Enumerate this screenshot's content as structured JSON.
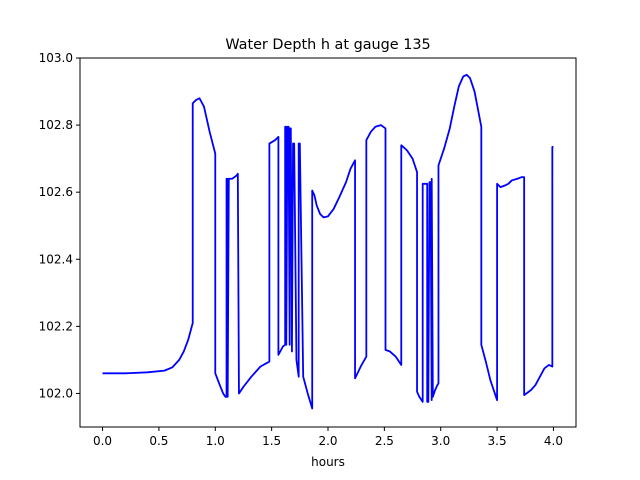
{
  "chart_data": {
    "type": "line",
    "title": "Water Depth h at gauge 135",
    "xlabel": "hours",
    "ylabel": "",
    "xlim": [
      -0.2,
      4.2
    ],
    "ylim": [
      101.9,
      103.0
    ],
    "xticks": [
      0.0,
      0.5,
      1.0,
      1.5,
      2.0,
      2.5,
      3.0,
      3.5,
      4.0
    ],
    "xtick_labels": [
      "0.0",
      "0.5",
      "1.0",
      "1.5",
      "2.0",
      "2.5",
      "3.0",
      "3.5",
      "4.0"
    ],
    "yticks": [
      102.0,
      102.2,
      102.4,
      102.6,
      102.8,
      103.0
    ],
    "ytick_labels": [
      "102.0",
      "102.2",
      "102.4",
      "102.6",
      "102.8",
      "103.0"
    ],
    "grid": false,
    "series": [
      {
        "color": "#0000ff",
        "x": [
          0.0,
          0.2,
          0.4,
          0.55,
          0.62,
          0.68,
          0.72,
          0.76,
          0.8,
          0.8,
          0.83,
          0.86,
          0.9,
          0.95,
          1.0,
          1.0,
          1.04,
          1.07,
          1.09,
          1.1,
          1.1,
          1.11,
          1.11,
          1.12,
          1.15,
          1.19,
          1.2,
          1.21,
          1.25,
          1.32,
          1.4,
          1.48,
          1.48,
          1.53,
          1.56,
          1.56,
          1.6,
          1.62,
          1.62,
          1.63,
          1.63,
          1.64,
          1.65,
          1.66,
          1.66,
          1.67,
          1.68,
          1.68,
          1.69,
          1.7,
          1.72,
          1.74,
          1.74,
          1.75,
          1.78,
          1.82,
          1.86,
          1.86,
          1.88,
          1.9,
          1.93,
          1.96,
          2.0,
          2.05,
          2.1,
          2.16,
          2.2,
          2.24,
          2.24,
          2.29,
          2.34,
          2.34,
          2.38,
          2.42,
          2.47,
          2.51,
          2.51,
          2.55,
          2.6,
          2.65,
          2.65,
          2.7,
          2.75,
          2.79,
          2.79,
          2.81,
          2.84,
          2.84,
          2.86,
          2.88,
          2.88,
          2.89,
          2.9,
          2.91,
          2.92,
          2.92,
          2.93,
          2.94,
          2.95,
          2.97,
          2.98,
          2.98,
          3.03,
          3.08,
          3.12,
          3.16,
          3.2,
          3.23,
          3.26,
          3.3,
          3.36,
          3.36,
          3.4,
          3.44,
          3.48,
          3.5,
          3.5,
          3.53,
          3.57,
          3.6,
          3.63,
          3.68,
          3.72,
          3.74,
          3.74,
          3.8,
          3.84,
          3.88,
          3.92,
          3.96,
          3.99,
          3.99,
          4.0
        ],
        "y": [
          102.06,
          102.06,
          102.063,
          102.068,
          102.078,
          102.1,
          102.125,
          102.16,
          102.21,
          102.865,
          102.875,
          102.88,
          102.855,
          102.78,
          102.715,
          102.06,
          102.025,
          102.0,
          101.99,
          101.99,
          102.64,
          102.64,
          101.99,
          102.64,
          102.64,
          102.65,
          102.655,
          102.0,
          102.02,
          102.05,
          102.08,
          102.095,
          102.745,
          102.755,
          102.765,
          102.115,
          102.14,
          102.145,
          102.795,
          102.795,
          102.145,
          102.795,
          102.795,
          102.145,
          102.79,
          102.79,
          102.13,
          102.125,
          102.745,
          102.745,
          102.1,
          102.05,
          102.745,
          102.745,
          102.05,
          102.0,
          101.955,
          102.605,
          102.59,
          102.56,
          102.535,
          102.525,
          102.528,
          102.55,
          102.585,
          102.63,
          102.67,
          102.695,
          102.045,
          102.08,
          102.11,
          102.755,
          102.78,
          102.795,
          102.8,
          102.79,
          102.13,
          102.125,
          102.11,
          102.085,
          102.74,
          102.725,
          102.7,
          102.66,
          102.005,
          101.99,
          101.975,
          102.625,
          102.625,
          102.625,
          101.975,
          101.975,
          102.63,
          102.63,
          101.98,
          102.64,
          101.99,
          102.0,
          102.01,
          102.025,
          102.03,
          102.68,
          102.73,
          102.79,
          102.855,
          102.915,
          102.945,
          102.95,
          102.94,
          102.9,
          102.795,
          102.145,
          102.095,
          102.04,
          102.0,
          101.98,
          102.625,
          102.615,
          102.62,
          102.625,
          102.635,
          102.64,
          102.645,
          102.645,
          101.995,
          102.01,
          102.025,
          102.05,
          102.075,
          102.085,
          102.08,
          102.735,
          102.735
        ]
      }
    ]
  }
}
